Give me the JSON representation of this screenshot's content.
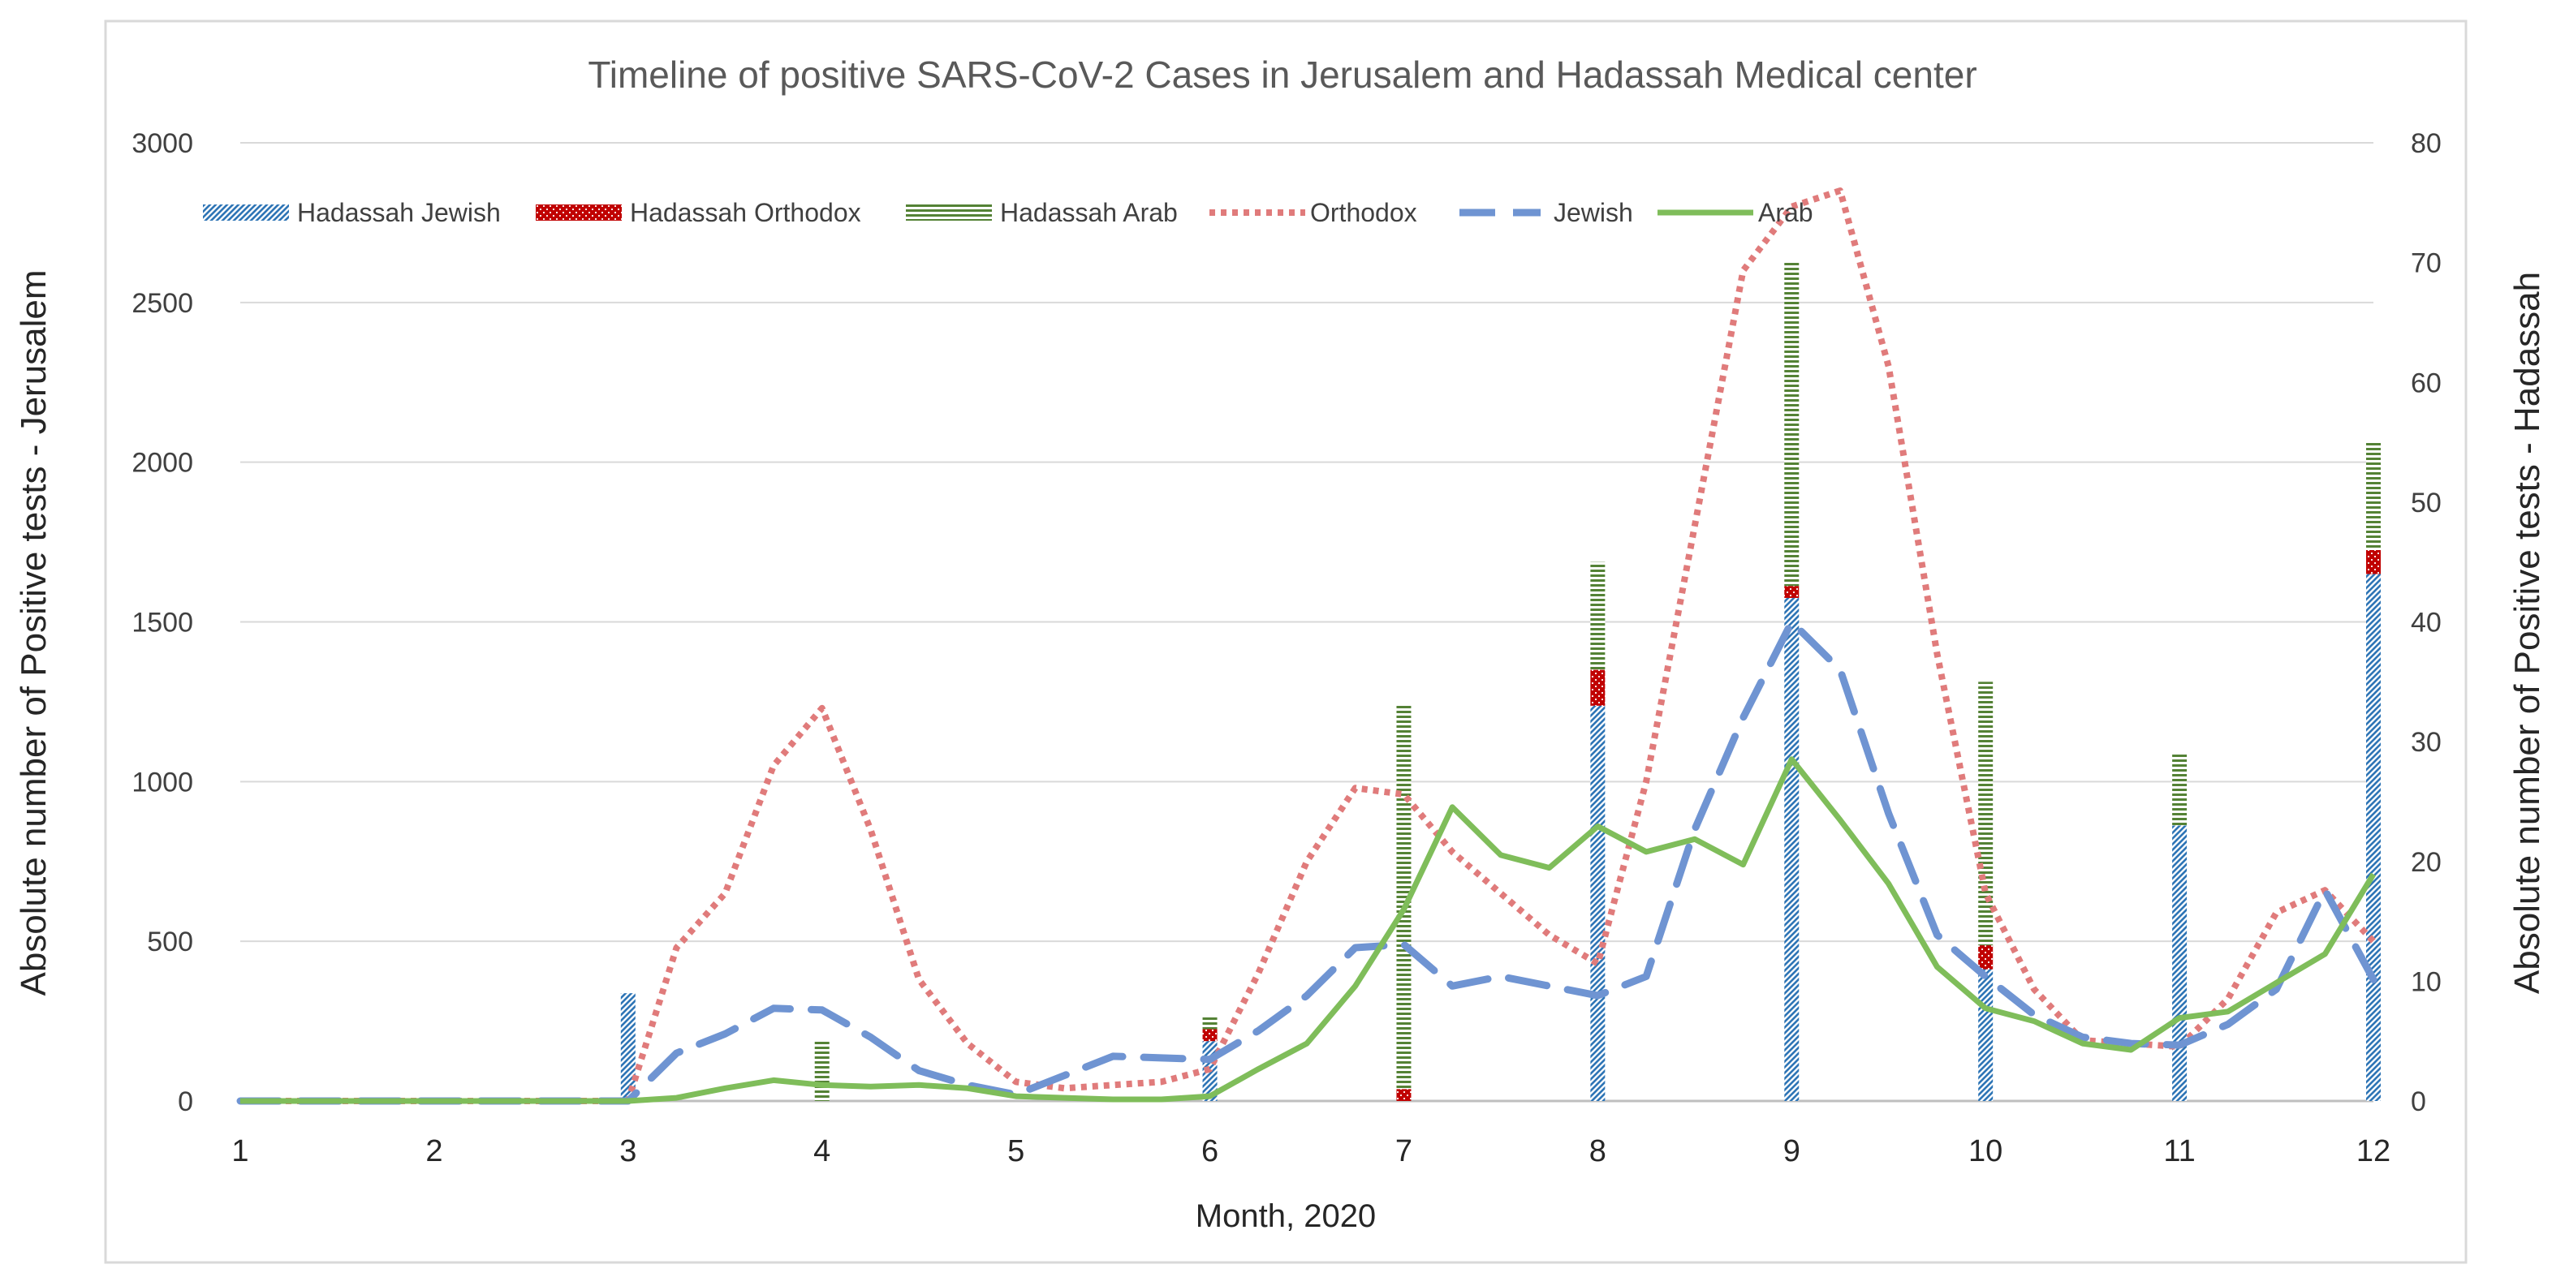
{
  "chart_data": {
    "type": "line+stacked-bar",
    "title": "Timeline of positive SARS-CoV-2 Cases in Jerusalem and Hadassah Medical center",
    "xlabel": "Month, 2020",
    "ylabel_left": "Absolute number of Positive tests - Jerusalem",
    "ylabel_right": "Absolute number of Positive tests - Hadassah",
    "xlim": [
      1,
      12
    ],
    "ylim_left": [
      0,
      3000
    ],
    "ylim_right": [
      0,
      80
    ],
    "yticks_left": [
      0,
      500,
      1000,
      1500,
      2000,
      2500,
      3000
    ],
    "yticks_right": [
      0,
      10,
      20,
      30,
      40,
      50,
      60,
      70,
      80
    ],
    "xticks": [
      1,
      2,
      3,
      4,
      5,
      6,
      7,
      8,
      9,
      10,
      11,
      12
    ],
    "legend_position": "top",
    "colors": {
      "hadassah_jewish": "#2e75b6",
      "hadassah_orthodox": "#c00000",
      "hadassah_arab": "#548235",
      "orthodox": "#e07b7b",
      "jewish": "#6f94d2",
      "arab": "#7fbd5a"
    },
    "legend": [
      {
        "key": "hadassah_jewish",
        "label": "Hadassah Jewish",
        "style": "bar"
      },
      {
        "key": "hadassah_orthodox",
        "label": "Hadassah Orthodox",
        "style": "bar"
      },
      {
        "key": "hadassah_arab",
        "label": "Hadassah Arab",
        "style": "bar"
      },
      {
        "key": "orthodox",
        "label": "Orthodox",
        "style": "dotted"
      },
      {
        "key": "jewish",
        "label": "Jewish",
        "style": "dashed"
      },
      {
        "key": "arab",
        "label": "Arab",
        "style": "solid"
      }
    ],
    "bars": {
      "axis": "right",
      "x": [
        3,
        4,
        6,
        7,
        8,
        9,
        10,
        11,
        12
      ],
      "series": [
        {
          "key": "hadassah_jewish",
          "name": "Hadassah Jewish",
          "values": [
            9,
            0,
            5,
            0,
            33,
            42,
            11,
            23,
            44
          ]
        },
        {
          "key": "hadassah_orthodox",
          "name": "Hadassah Orthodox",
          "values": [
            0,
            0,
            1,
            1,
            3,
            1,
            2,
            0,
            2
          ]
        },
        {
          "key": "hadassah_arab",
          "name": "Hadassah Arab",
          "values": [
            0,
            5,
            1,
            32,
            9,
            27,
            22,
            6,
            9
          ]
        }
      ]
    },
    "lines": {
      "axis": "left",
      "series": [
        {
          "key": "orthodox",
          "name": "Orthodox",
          "style": "dotted",
          "x": [
            1,
            2,
            3,
            3.25,
            3.5,
            3.75,
            4,
            4.25,
            4.5,
            4.75,
            5,
            5.25,
            5.5,
            5.75,
            6,
            6.25,
            6.5,
            6.75,
            7,
            7.25,
            7.5,
            7.75,
            8,
            8.25,
            8.5,
            8.75,
            9,
            9.25,
            9.5,
            9.75,
            10,
            10.25,
            10.5,
            10.75,
            11,
            11.25,
            11.5,
            11.75,
            12
          ],
          "values": [
            0,
            0,
            0,
            480,
            650,
            1050,
            1230,
            850,
            380,
            180,
            60,
            40,
            50,
            60,
            100,
            400,
            750,
            980,
            960,
            780,
            650,
            520,
            430,
            1000,
            1800,
            2600,
            2800,
            2850,
            2300,
            1400,
            650,
            350,
            190,
            180,
            170,
            320,
            590,
            660,
            500
          ]
        },
        {
          "key": "jewish",
          "name": "Jewish",
          "style": "dashed",
          "x": [
            1,
            2,
            3,
            3.25,
            3.5,
            3.75,
            4,
            4.25,
            4.5,
            4.75,
            5,
            5.25,
            5.5,
            5.75,
            6,
            6.25,
            6.5,
            6.75,
            7,
            7.25,
            7.5,
            7.75,
            8,
            8.25,
            8.5,
            8.75,
            9,
            9.25,
            9.5,
            9.75,
            10,
            10.25,
            10.5,
            10.75,
            11,
            11.25,
            11.5,
            11.75,
            12
          ],
          "values": [
            0,
            0,
            0,
            150,
            210,
            290,
            285,
            200,
            95,
            50,
            20,
            80,
            140,
            135,
            130,
            220,
            330,
            480,
            490,
            360,
            390,
            360,
            330,
            390,
            850,
            1200,
            1500,
            1350,
            900,
            520,
            390,
            270,
            200,
            180,
            175,
            240,
            350,
            660,
            380
          ]
        },
        {
          "key": "arab",
          "name": "Arab",
          "style": "solid",
          "x": [
            1,
            2,
            3,
            3.25,
            3.5,
            3.75,
            4,
            4.25,
            4.5,
            4.75,
            5,
            5.25,
            5.5,
            5.75,
            6,
            6.25,
            6.5,
            6.75,
            7,
            7.25,
            7.5,
            7.75,
            8,
            8.25,
            8.5,
            8.75,
            9,
            9.25,
            9.5,
            9.75,
            10,
            10.25,
            10.5,
            10.75,
            11,
            11.25,
            11.5,
            11.75,
            12
          ],
          "values": [
            0,
            0,
            0,
            10,
            40,
            65,
            50,
            45,
            50,
            40,
            15,
            10,
            5,
            5,
            15,
            100,
            180,
            360,
            600,
            920,
            770,
            730,
            860,
            780,
            820,
            740,
            1070,
            880,
            680,
            420,
            290,
            250,
            180,
            160,
            260,
            280,
            370,
            460,
            710
          ]
        }
      ]
    }
  }
}
